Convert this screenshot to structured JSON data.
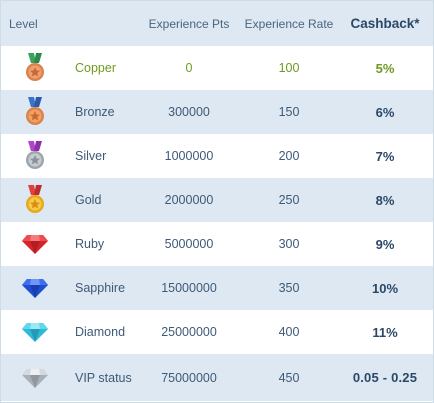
{
  "header": {
    "level": "Level",
    "experience_pts": "Experience Pts",
    "experience_rate": "Experience Rate",
    "cashback": "Cashback*"
  },
  "rows": [
    {
      "icon": "copper-medal-icon",
      "level": "Copper",
      "experience_pts": "0",
      "experience_rate": "100",
      "cashback": "5%"
    },
    {
      "icon": "bronze-medal-icon",
      "level": "Bronze",
      "experience_pts": "300000",
      "experience_rate": "150",
      "cashback": "6%"
    },
    {
      "icon": "silver-medal-icon",
      "level": "Silver",
      "experience_pts": "1000000",
      "experience_rate": "200",
      "cashback": "7%"
    },
    {
      "icon": "gold-medal-icon",
      "level": "Gold",
      "experience_pts": "2000000",
      "experience_rate": "250",
      "cashback": "8%"
    },
    {
      "icon": "ruby-gem-icon",
      "level": "Ruby",
      "experience_pts": "5000000",
      "experience_rate": "300",
      "cashback": "9%"
    },
    {
      "icon": "sapphire-gem-icon",
      "level": "Sapphire",
      "experience_pts": "15000000",
      "experience_rate": "350",
      "cashback": "10%"
    },
    {
      "icon": "diamond-gem-icon",
      "level": "Diamond",
      "experience_pts": "25000000",
      "experience_rate": "400",
      "cashback": "11%"
    },
    {
      "icon": "vip-gem-icon",
      "level": "VIP status",
      "experience_pts": "75000000",
      "experience_rate": "450",
      "cashback": "0.05 - 0.25"
    }
  ],
  "colors": {
    "header_bg": "#dde8f2",
    "alt_row_bg": "#dde8f2",
    "text": "#3f5a77",
    "copper_accent": "#6e9a1f",
    "cashback_text": "#2c4868"
  }
}
